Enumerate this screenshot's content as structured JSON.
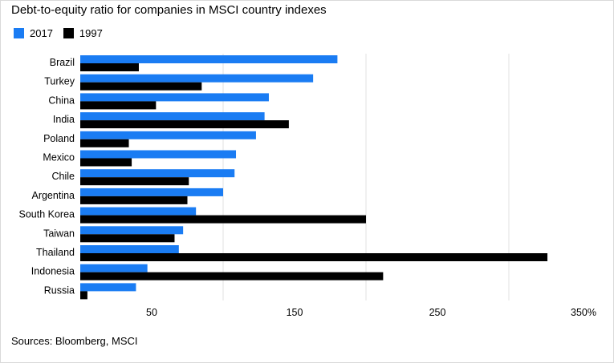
{
  "colors": {
    "series_2017": "#1a7cf3",
    "series_1997": "#000000",
    "grid": "#e0e0e0"
  },
  "chart_data": {
    "type": "bar",
    "orientation": "horizontal",
    "title": "Debt-to-equity ratio for companies in MSCI country indexes",
    "legend": {
      "placement": "top-left",
      "entries": [
        "2017",
        "1997"
      ]
    },
    "categories": [
      "Brazil",
      "Turkey",
      "China",
      "India",
      "Poland",
      "Mexico",
      "Chile",
      "Argentina",
      "South Korea",
      "Taiwan",
      "Thailand",
      "Indonesia",
      "Russia"
    ],
    "series": [
      {
        "name": "2017",
        "values": [
          180,
          163,
          132,
          129,
          123,
          109,
          108,
          100,
          81,
          72,
          69,
          47,
          39
        ]
      },
      {
        "name": "1997",
        "values": [
          41,
          85,
          53,
          146,
          34,
          36,
          76,
          75,
          200,
          66,
          327,
          212,
          5
        ]
      }
    ],
    "x_ticks": [
      {
        "value": 50,
        "label": "50"
      },
      {
        "value": 150,
        "label": "150"
      },
      {
        "value": 250,
        "label": "250"
      },
      {
        "value": 350,
        "label": "350%"
      }
    ],
    "xlim": [
      0,
      350
    ],
    "grid": true,
    "xlabel": "",
    "ylabel": ""
  },
  "source_text": "Sources: Bloomberg, MSCI"
}
